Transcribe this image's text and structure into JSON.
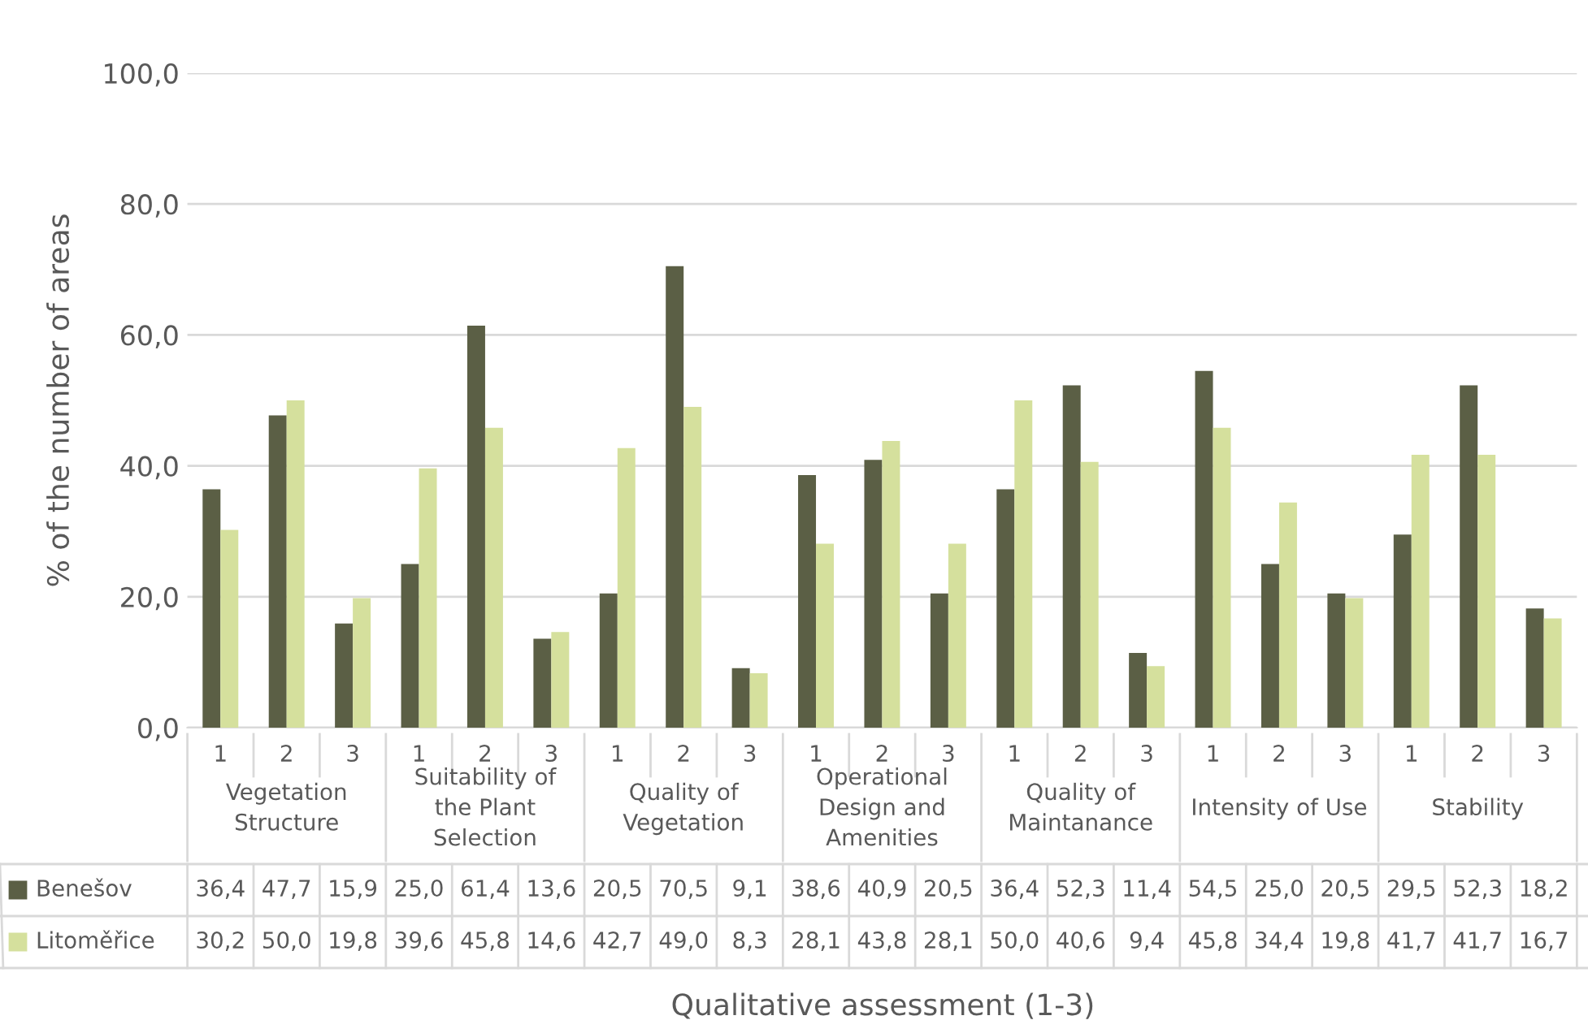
{
  "chart_data": {
    "type": "bar",
    "ylabel": "% of the number of areas",
    "categories": [
      "1",
      "2",
      "3",
      "1",
      "2",
      "3",
      "1",
      "2",
      "3",
      "1",
      "2",
      "3",
      "1",
      "2",
      "3",
      "1",
      "2",
      "3",
      "1",
      "2",
      "3"
    ],
    "annotations": [
      "Vegetation Structure",
      "Suitability of the Plant Selection",
      "Quality of Vegetation",
      "Operational Design and Amenities",
      "Quality of Maintanance",
      "Intensity of Use",
      "Stability",
      "Qualitative assessment (1-3)"
    ],
    "series": [
      {
        "name": "Benešov",
        "color": "#5b5f45",
        "values": [
          36.4,
          47.7,
          15.9,
          25.0,
          61.4,
          13.6,
          20.5,
          70.5,
          9.1,
          38.6,
          40.9,
          20.5,
          36.4,
          52.3,
          11.4,
          54.5,
          25.0,
          20.5,
          29.5,
          52.3,
          18.2
        ],
        "value_labels": [
          "36,4",
          "47,7",
          "15,9",
          "25,0",
          "61,4",
          "13,6",
          "20,5",
          "70,5",
          "9,1",
          "38,6",
          "40,9",
          "20,5",
          "36,4",
          "52,3",
          "11,4",
          "54,5",
          "25,0",
          "20,5",
          "29,5",
          "52,3",
          "18,2"
        ]
      },
      {
        "name": "Litoměřice",
        "color": "#d5e09d",
        "values": [
          30.2,
          50.0,
          19.8,
          39.6,
          45.8,
          14.6,
          42.7,
          49.0,
          8.3,
          28.1,
          43.8,
          28.1,
          50.0,
          40.6,
          9.4,
          45.8,
          34.4,
          19.8,
          41.7,
          41.7,
          16.7
        ],
        "value_labels": [
          "30,2",
          "50,0",
          "19,8",
          "39,6",
          "45,8",
          "14,6",
          "42,7",
          "49,0",
          "8,3",
          "28,1",
          "43,8",
          "28,1",
          "50,0",
          "40,6",
          "9,4",
          "45,8",
          "34,4",
          "19,8",
          "41,7",
          "41,7",
          "16,7"
        ]
      }
    ],
    "ylim": [
      0,
      100
    ],
    "yticks": [
      {
        "value": 0,
        "label": "0,0"
      },
      {
        "value": 20,
        "label": "20,0"
      },
      {
        "value": 40,
        "label": "40,0"
      },
      {
        "value": 60,
        "label": "60,0"
      },
      {
        "value": 80,
        "label": "80,0"
      },
      {
        "value": 100,
        "label": "100,0"
      }
    ],
    "grid": "y",
    "legend": "bottom"
  }
}
